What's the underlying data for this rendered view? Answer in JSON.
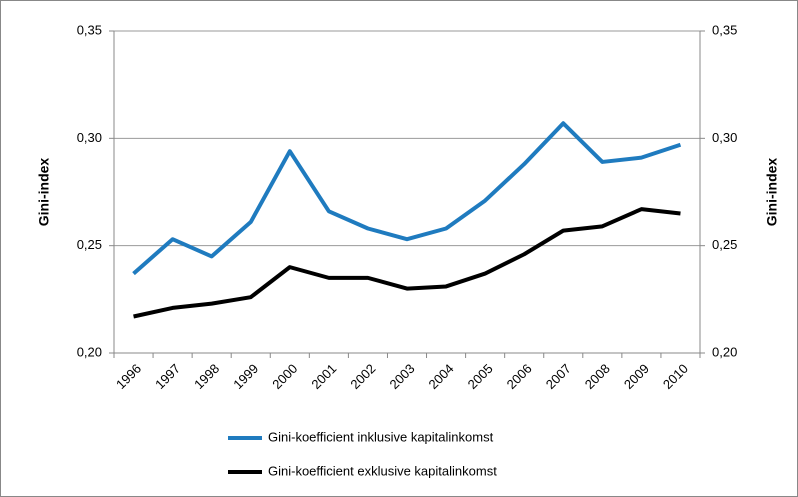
{
  "chart_data": {
    "type": "line",
    "y_label": "Gini-index",
    "y2_label": "Gini-index",
    "categories": [
      "1996",
      "1997",
      "1998",
      "1999",
      "2000",
      "2001",
      "2002",
      "2003",
      "2004",
      "2005",
      "2006",
      "2007",
      "2008",
      "2009",
      "2010"
    ],
    "series": [
      {
        "name": "Gini-koefficient inklusive kapitalinkomst",
        "color": "#1f7bbf",
        "values": [
          0.237,
          0.253,
          0.245,
          0.261,
          0.294,
          0.266,
          0.258,
          0.253,
          0.258,
          0.271,
          0.288,
          0.307,
          0.289,
          0.291,
          0.297
        ]
      },
      {
        "name": "Gini-koefficient exklusive kapitalinkomst",
        "color": "#000000",
        "values": [
          0.217,
          0.221,
          0.223,
          0.226,
          0.24,
          0.235,
          0.235,
          0.23,
          0.231,
          0.237,
          0.246,
          0.257,
          0.259,
          0.267,
          0.265
        ]
      }
    ],
    "ylim": [
      0.2,
      0.35
    ],
    "yticks": [
      {
        "value": 0.2,
        "label": "0,20"
      },
      {
        "value": 0.25,
        "label": "0,25"
      },
      {
        "value": 0.3,
        "label": "0,30"
      },
      {
        "value": 0.35,
        "label": "0,35"
      }
    ],
    "y2lim": [
      0.2,
      0.35
    ],
    "y2ticks": [
      {
        "value": 0.2,
        "label": "0,20"
      },
      {
        "value": 0.25,
        "label": "0,25"
      },
      {
        "value": 0.3,
        "label": "0,30"
      },
      {
        "value": 0.35,
        "label": "0,35"
      }
    ],
    "grid": true,
    "legend": "bottom"
  }
}
